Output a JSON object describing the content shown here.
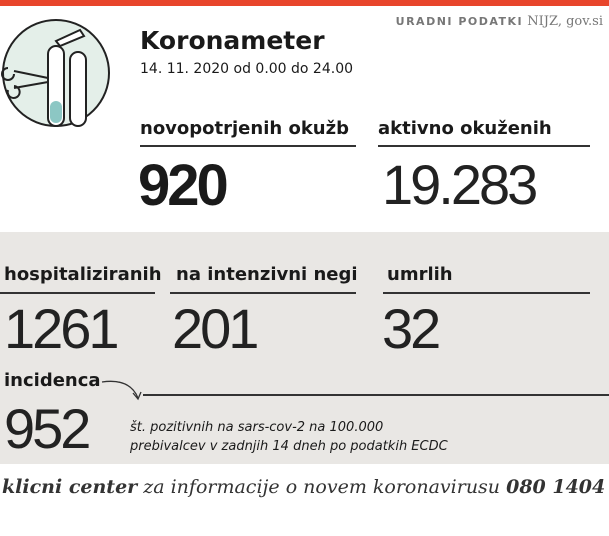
{
  "header": {
    "source_label": "URADNI PODATKI",
    "source": "NIJZ, gov.si",
    "title": "Koronameter",
    "date": "14. 11. 2020 od 0.00 do 24.00"
  },
  "top_stats": [
    {
      "label": "novopotrjenih okužb",
      "value": "920"
    },
    {
      "label": "aktivno okuženih",
      "value": "19.283"
    }
  ],
  "stats": [
    {
      "label": "hospitaliziranih",
      "value": "1261"
    },
    {
      "label": "na intenzivni negi",
      "value": "201"
    },
    {
      "label": "umrlih",
      "value": "32"
    }
  ],
  "incidence": {
    "label": "incidenca",
    "value": "952",
    "note_line1": "št. pozitivnih na sars-cov-2 na 100.000",
    "note_line2": "prebivalcev v zadnjih 14 dneh po podatkih ECDC"
  },
  "footer": {
    "name": "klicni center",
    "text": "za informacije o novem koronavirusu",
    "phone": "080 1404"
  }
}
